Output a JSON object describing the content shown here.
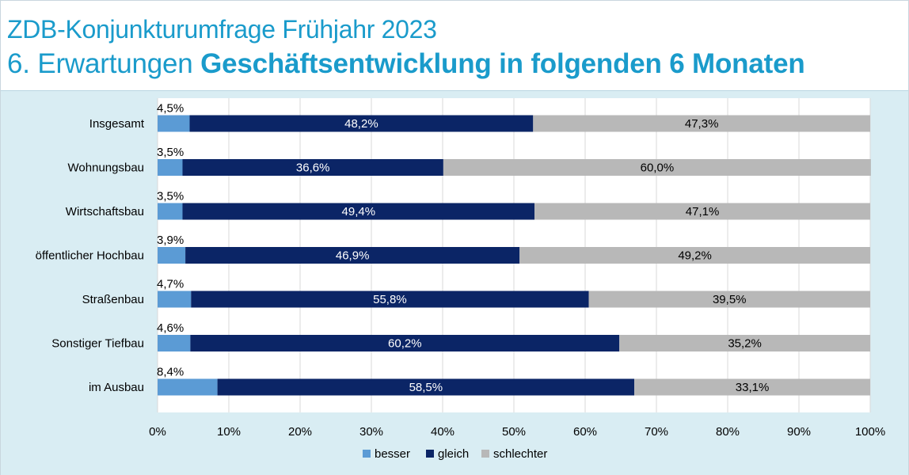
{
  "title": {
    "line1": "ZDB-Konjunkturumfrage Frühjahr 2023",
    "line2_prefix": "6. Erwartungen ",
    "line2_bold": "Geschäftsentwicklung in folgenden 6 Monaten"
  },
  "colors": {
    "title": "#1a9bcb",
    "panel_background": "#d9edf3",
    "plot_background": "#ffffff",
    "gridline": "#d9d9d9",
    "besser": "#5b9bd5",
    "gleich": "#0b2566",
    "schlechter": "#b8b8b8"
  },
  "chart_data": {
    "type": "bar",
    "orientation": "horizontal",
    "stacked": true,
    "categories": [
      "Insgesamt",
      "Wohnungsbau",
      "Wirtschaftsbau",
      "öffentlicher Hochbau",
      "Straßenbau",
      "Sonstiger Tiefbau",
      "im Ausbau"
    ],
    "series": [
      {
        "name": "besser",
        "values": [
          4.5,
          3.5,
          3.5,
          3.9,
          4.7,
          4.6,
          8.4
        ],
        "labels": [
          "4,5%",
          "3,5%",
          "3,5%",
          "3,9%",
          "4,7%",
          "4,6%",
          "8,4%"
        ]
      },
      {
        "name": "gleich",
        "values": [
          48.2,
          36.6,
          49.4,
          46.9,
          55.8,
          60.2,
          58.5
        ],
        "labels": [
          "48,2%",
          "36,6%",
          "49,4%",
          "46,9%",
          "55,8%",
          "60,2%",
          "58,5%"
        ]
      },
      {
        "name": "schlechter",
        "values": [
          47.3,
          60.0,
          47.1,
          49.2,
          39.5,
          35.2,
          33.1
        ],
        "labels": [
          "47,3%",
          "60,0%",
          "47,1%",
          "49,2%",
          "39,5%",
          "35,2%",
          "33,1%"
        ]
      }
    ],
    "xlim": [
      0,
      100
    ],
    "x_ticks": [
      0,
      10,
      20,
      30,
      40,
      50,
      60,
      70,
      80,
      90,
      100
    ],
    "x_tick_labels": [
      "0%",
      "10%",
      "20%",
      "30%",
      "40%",
      "50%",
      "60%",
      "70%",
      "80%",
      "90%",
      "100%"
    ],
    "grid": true,
    "legend_position": "bottom"
  }
}
